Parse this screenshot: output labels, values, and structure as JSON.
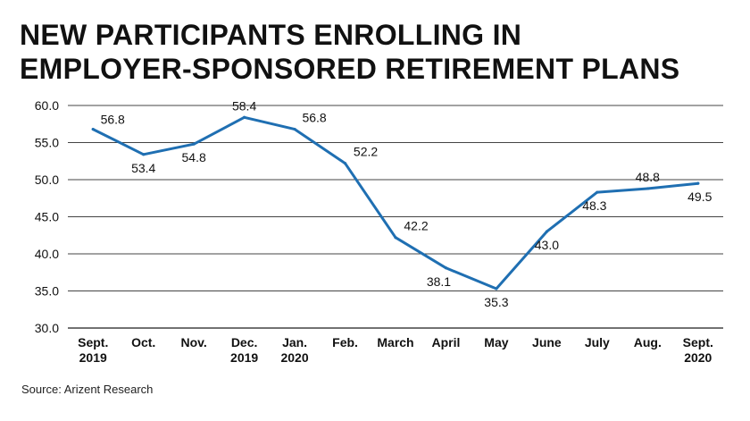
{
  "title_lines": [
    "NEW PARTICIPANTS ENROLLING IN",
    "EMPLOYER-SPONSORED RETIREMENT PLANS"
  ],
  "source": "Source: Arizent Research",
  "colors": {
    "line": "#1f6fb2",
    "grid": "#444444",
    "text": "#111111"
  },
  "chart_data": {
    "type": "line",
    "title": "NEW PARTICIPANTS ENROLLING IN EMPLOYER-SPONSORED RETIREMENT PLANS",
    "xlabel": "",
    "ylabel": "",
    "ylim": [
      30,
      60
    ],
    "yticks": [
      "60.0",
      "55.0",
      "50.0",
      "45.0",
      "40.0",
      "35.0",
      "30.0"
    ],
    "grid": true,
    "categories": [
      [
        "Sept.",
        "2019"
      ],
      [
        "Oct."
      ],
      [
        "Nov."
      ],
      [
        "Dec.",
        "2019"
      ],
      [
        "Jan.",
        "2020"
      ],
      [
        "Feb."
      ],
      [
        "March"
      ],
      [
        "April"
      ],
      [
        "May"
      ],
      [
        "June"
      ],
      [
        "July"
      ],
      [
        "Aug."
      ],
      [
        "Sept.",
        "2020"
      ]
    ],
    "series": [
      {
        "values": [
          56.8,
          53.4,
          54.8,
          58.4,
          56.8,
          52.2,
          42.2,
          38.1,
          35.3,
          43.0,
          48.3,
          48.8,
          49.5
        ]
      }
    ],
    "data_labels": [
      "56.8",
      "53.4",
      "54.8",
      "58.4",
      "56.8",
      "52.2",
      "42.2",
      "38.1",
      "35.3",
      "43.0",
      "48.3",
      "48.8",
      "49.5"
    ]
  }
}
